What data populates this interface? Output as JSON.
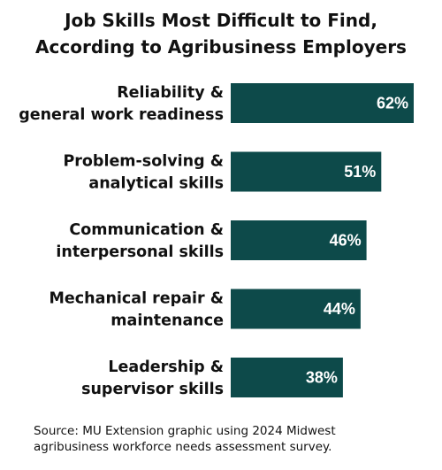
{
  "title_lines": [
    "Job Skills Most Difficult to Find,",
    "According to Agribusiness Employers"
  ],
  "source_lines": [
    "Source: MU Extension graphic using 2024 Midwest",
    "agribusiness workforce needs assessment survey."
  ],
  "colors": {
    "bar": "#0d4a4a",
    "bar_label": "#ffffff",
    "text": "#111111"
  },
  "chart_data": {
    "type": "bar",
    "orientation": "horizontal",
    "title": "Job Skills Most Difficult to Find, According to Agribusiness Employers",
    "categories": [
      [
        "Reliability &",
        "general work readiness"
      ],
      [
        "Problem-solving &",
        "analytical skills"
      ],
      [
        "Communication &",
        "interpersonal skills"
      ],
      [
        "Mechanical repair &",
        "maintenance"
      ],
      [
        "Leadership &",
        "supervisor skills"
      ]
    ],
    "values": [
      62,
      51,
      46,
      44,
      38
    ],
    "value_labels": [
      "62%",
      "51%",
      "46%",
      "44%",
      "38%"
    ],
    "unit": "%",
    "xlim": [
      0,
      62
    ],
    "grid": false,
    "legend": "none",
    "axes_visible": false
  }
}
